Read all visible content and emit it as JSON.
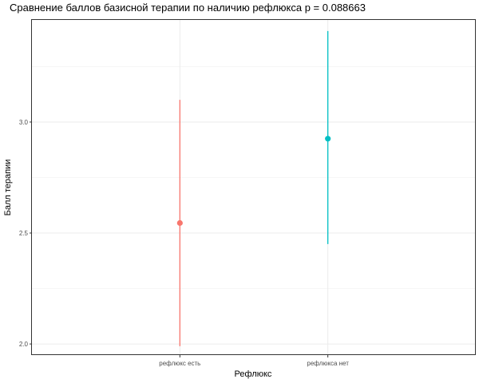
{
  "chart_data": {
    "type": "errorbar",
    "title": "Сравнение баллов базисной терапии по наличию рефлюкса p = 0.088663",
    "xlabel": "Рефлюкс",
    "ylabel": "Балл терапии",
    "categories": [
      "рефлюкс есть",
      "рефлюкса нет"
    ],
    "points": [
      {
        "category": "рефлюкс есть",
        "mean": 2.545,
        "lower": 1.99,
        "upper": 3.1,
        "color": "#F8766D"
      },
      {
        "category": "рефлюкса нет",
        "mean": 2.925,
        "lower": 2.45,
        "upper": 3.41,
        "color": "#00BFC4"
      }
    ],
    "y_ticks": [
      2.0,
      2.5,
      3.0
    ],
    "y_tick_labels": [
      "2.0",
      "2.5",
      "3.0"
    ],
    "ylim": [
      1.95,
      3.46
    ],
    "grid": true,
    "legend": "none"
  }
}
